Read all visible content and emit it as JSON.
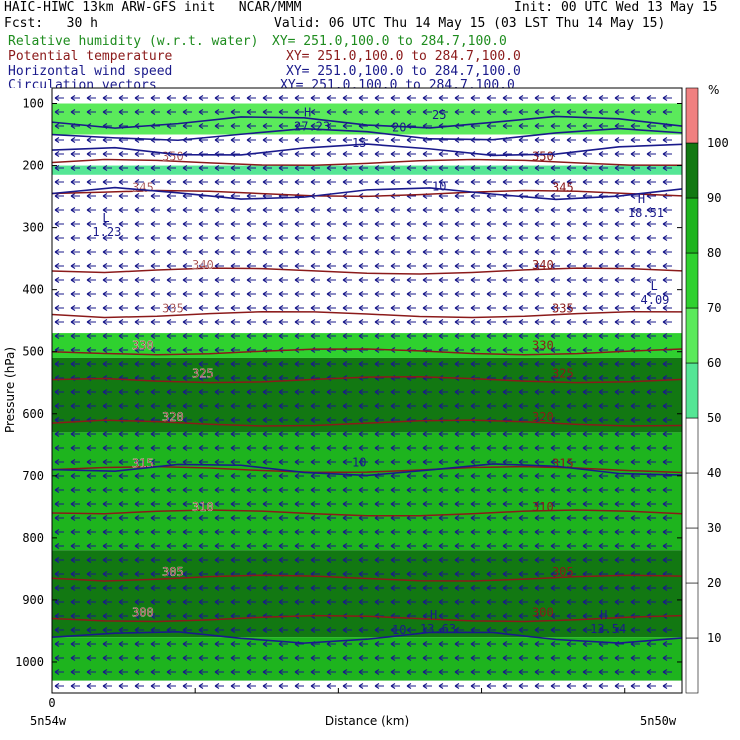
{
  "header": {
    "title_left": "HAIC-HIWC 13km ARW-GFS init   NCAR/MMM",
    "init_line": "Init: 00 UTC Wed 13 May 15",
    "fcst_line": "Fcst:   30 h",
    "valid_line": "Valid: 06 UTC Thu 14 May 15 (03 LST Thu 14 May 15)",
    "fields": [
      {
        "label": "Relative humidity (w.r.t. water)",
        "coords": "XY= 251.0,100.0 to 284.7,100.0",
        "color": "#1e8c1e"
      },
      {
        "label": "Potential temperature",
        "coords": "XY= 251.0,100.0 to 284.7,100.0",
        "color": "#8b1a1a"
      },
      {
        "label": "Horizontal wind speed",
        "coords": "XY= 251.0,100.0 to 284.7,100.0",
        "color": "#1a1a8b"
      },
      {
        "label": "Circulation vectors",
        "coords": "XY= 251.0,100.0 to 284.7,100.0",
        "color": "#1a1a8b"
      }
    ]
  },
  "chart_data": {
    "type": "heatmap",
    "xlabel": "Distance (km)",
    "ylabel": "Pressure (hPa)",
    "x_ticks": [
      {
        "value": 0,
        "label": "0"
      }
    ],
    "x_endpoint_labels": [
      "5n54w",
      "5n50w"
    ],
    "y_axis": {
      "min": 100,
      "max": 1050,
      "ticks": [
        100,
        200,
        300,
        400,
        500,
        600,
        700,
        800,
        900,
        1000
      ]
    },
    "colorbar": {
      "unit": "%",
      "levels": [
        10,
        20,
        30,
        40,
        50,
        60,
        70,
        80,
        90,
        100
      ],
      "colors": [
        "#ffffff",
        "#ffffff",
        "#ffffff",
        "#ffffff",
        "#ffffff",
        "#55e695",
        "#5bea5b",
        "#2fd12f",
        "#1eb41e",
        "#127812",
        "#f08080"
      ]
    },
    "rh_layers": [
      {
        "p_top": 100,
        "p_bot": 150,
        "rh": 60
      },
      {
        "p_top": 150,
        "p_bot": 180,
        "rh": 30
      },
      {
        "p_top": 180,
        "p_bot": 200,
        "rh": 35
      },
      {
        "p_top": 200,
        "p_bot": 215,
        "rh": 55
      },
      {
        "p_top": 215,
        "p_bot": 470,
        "rh": 30
      },
      {
        "p_top": 470,
        "p_bot": 510,
        "rh": 75
      },
      {
        "p_top": 510,
        "p_bot": 630,
        "rh": 95
      },
      {
        "p_top": 630,
        "p_bot": 820,
        "rh": 85
      },
      {
        "p_top": 820,
        "p_bot": 960,
        "rh": 95
      },
      {
        "p_top": 960,
        "p_bot": 1030,
        "rh": 85
      }
    ],
    "theta_contours": [
      {
        "value": 300,
        "p": 930
      },
      {
        "value": 305,
        "p": 865
      },
      {
        "value": 310,
        "p": 760
      },
      {
        "value": 315,
        "p": 690
      },
      {
        "value": 320,
        "p": 615
      },
      {
        "value": 325,
        "p": 545
      },
      {
        "value": 330,
        "p": 500
      },
      {
        "value": 335,
        "p": 440
      },
      {
        "value": 340,
        "p": 370
      },
      {
        "value": 345,
        "p": 245
      },
      {
        "value": 350,
        "p": 195
      }
    ],
    "wind_speed_contours": [
      {
        "value": 10,
        "p": 690
      },
      {
        "value": 10,
        "p": 960
      },
      {
        "value": 10,
        "p": 245
      },
      {
        "value": 15,
        "p": 175
      },
      {
        "value": 20,
        "p": 150
      },
      {
        "value": 25,
        "p": 130
      }
    ],
    "extrema_labels": [
      {
        "kind": "L",
        "value": "1.23",
        "x": 0.08,
        "p": 310
      },
      {
        "kind": "H",
        "value": "18.51",
        "x": 0.93,
        "p": 280
      },
      {
        "kind": "L",
        "value": "4.09",
        "x": 0.95,
        "p": 420
      },
      {
        "kind": "H",
        "value": "13.63",
        "x": 0.6,
        "p": 950
      },
      {
        "kind": "H",
        "value": "13.54",
        "x": 0.87,
        "p": 950
      },
      {
        "kind": "H",
        "value": "27.23",
        "x": 0.4,
        "p": 140
      }
    ],
    "vector_field": {
      "direction": "west",
      "reference": "circulation vectors"
    }
  }
}
